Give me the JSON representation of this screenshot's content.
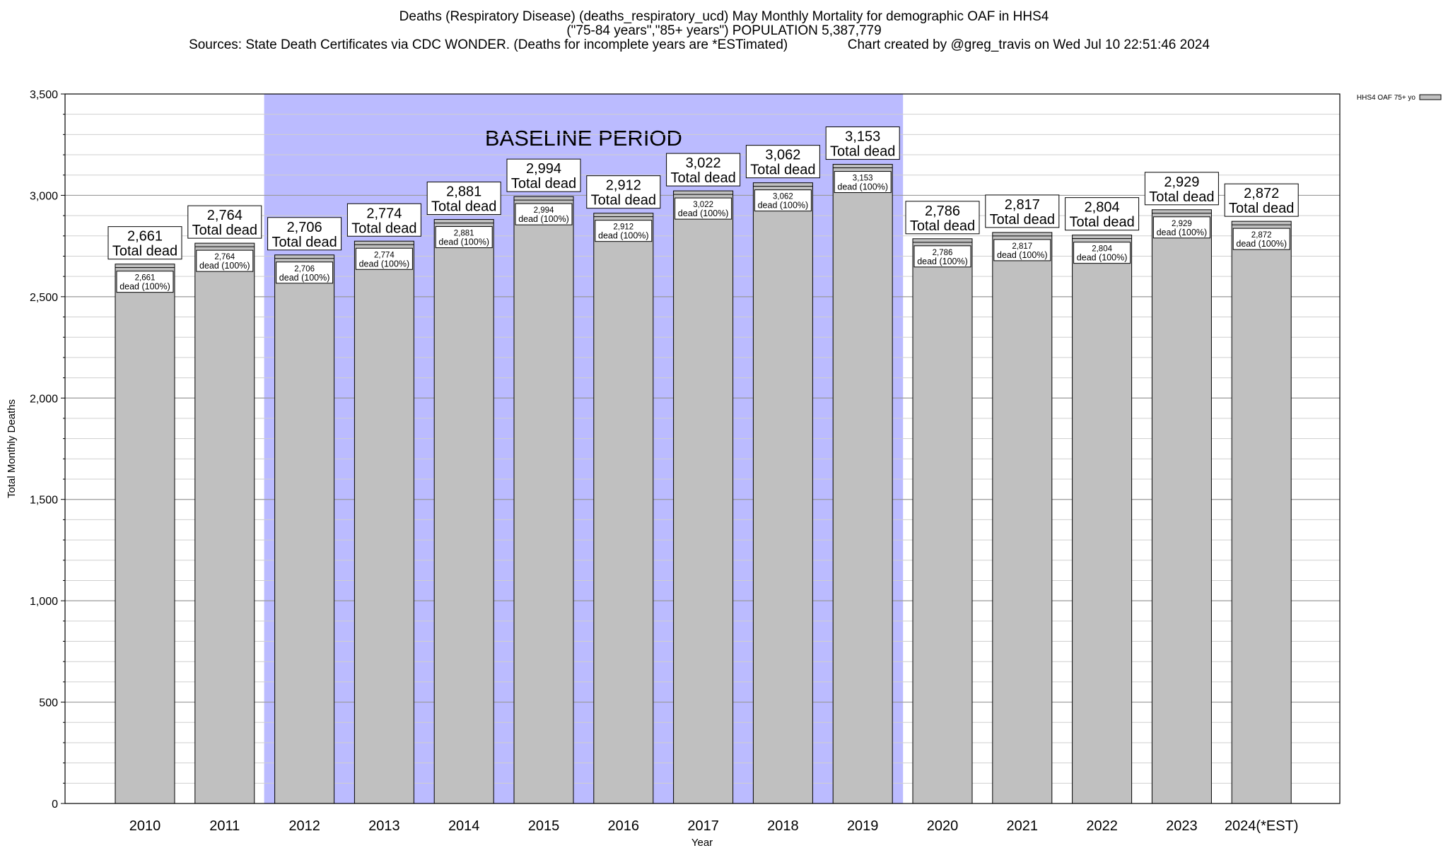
{
  "title": {
    "line1": "Deaths (Respiratory Disease) (deaths_respiratory_ucd) May Monthly Mortality for demographic OAF in HHS4",
    "line2": "(\"75-84 years\",\"85+ years\") POPULATION 5,387,779",
    "line3": "Sources: State Death Certificates via CDC WONDER. (Deaths for incomplete years are *ESTimated)                Chart created by @greg_travis on Wed Jul 10 22:51:46 2024"
  },
  "chart_data": {
    "type": "bar",
    "xlabel": "Year",
    "ylabel": "Total Monthly Deaths",
    "ylim": [
      0,
      3500
    ],
    "yticks": [
      0,
      500,
      1000,
      1500,
      2000,
      2500,
      3000,
      3500
    ],
    "ytick_labels": [
      "0",
      "500",
      "1,000",
      "1,500",
      "2,000",
      "2,500",
      "3,000",
      "3,500"
    ],
    "grid": true,
    "legend_position": "top-right",
    "categories": [
      "2010",
      "2011",
      "2012",
      "2013",
      "2014",
      "2015",
      "2016",
      "2017",
      "2018",
      "2019",
      "2020",
      "2021",
      "2022",
      "2023",
      "2024(*EST)"
    ],
    "series": [
      {
        "name": "HHS4 OAF 75+ yo",
        "values": [
          2661,
          2764,
          2706,
          2774,
          2881,
          2994,
          2912,
          3022,
          3062,
          3153,
          2786,
          2817,
          2804,
          2929,
          2872
        ],
        "color": "#c0c0c0"
      }
    ],
    "top_labels": [
      "2,661",
      "2,764",
      "2,706",
      "2,774",
      "2,881",
      "2,994",
      "2,912",
      "3,022",
      "3,062",
      "3,153",
      "2,786",
      "2,817",
      "2,804",
      "2,929",
      "2,872"
    ],
    "top_label_suffix": "Total dead",
    "inner_label_suffix": "dead (100%)",
    "baseline_period": {
      "label": "BASELINE PERIOD",
      "start": "2012",
      "end": "2019",
      "color": "#bbbbff"
    }
  }
}
